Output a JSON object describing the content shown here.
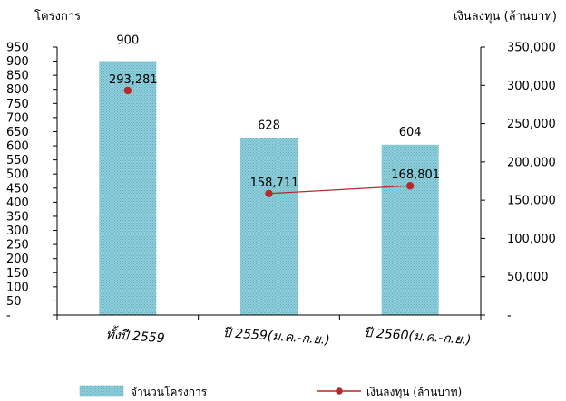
{
  "chart_data": {
    "type": "bar",
    "categories": [
      "ทั้งปี 2559",
      "ปี 2559(ม.ค.-ก.ย.)",
      "ปี 2560(ม.ค.-ก.ย.)"
    ],
    "series": [
      {
        "name": "จำนวนโครงการ",
        "type": "bar",
        "axis": "left",
        "values": [
          900,
          628,
          604
        ],
        "labels": [
          "900",
          "628",
          "604"
        ],
        "color": "#8fd0dc"
      },
      {
        "name": "เงินลงทุน (ล้านบาท)",
        "type": "line",
        "axis": "right",
        "values": [
          293281,
          158711,
          168801
        ],
        "labels": [
          "293,281",
          "158,711",
          "168,801"
        ],
        "color": "#b52a2a"
      }
    ],
    "y_left": {
      "label": "โครงการ",
      "min": 0,
      "max": 950,
      "step": 50,
      "tick_labels": [
        "-",
        "50",
        "100",
        "150",
        "200",
        "250",
        "300",
        "350",
        "400",
        "450",
        "500",
        "550",
        "600",
        "650",
        "700",
        "750",
        "800",
        "850",
        "900",
        "950"
      ]
    },
    "y_right": {
      "label": "เงินลงทุน (ล้านบาท)",
      "min": 0,
      "max": 350000,
      "step": 50000,
      "tick_labels": [
        "-",
        "50,000",
        "100,000",
        "150,000",
        "200,000",
        "250,000",
        "300,000",
        "350,000"
      ]
    },
    "grid": false,
    "legend_position": "bottom"
  }
}
